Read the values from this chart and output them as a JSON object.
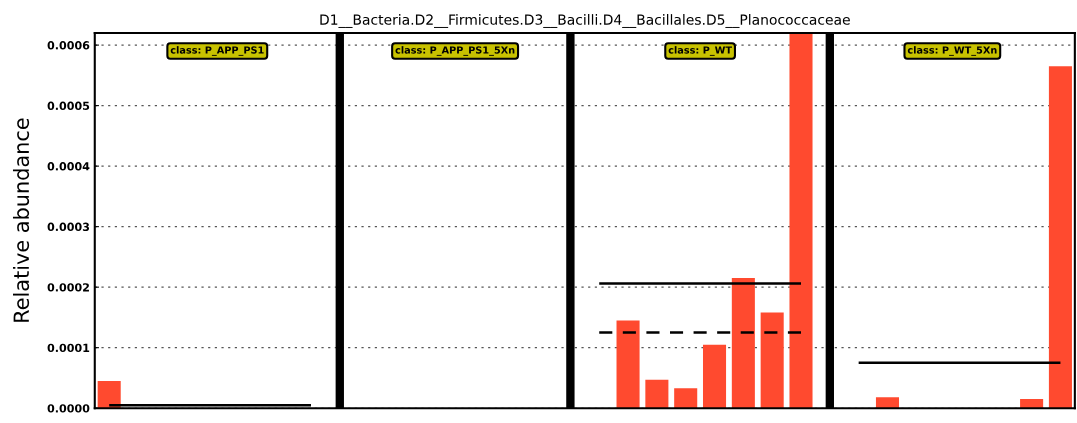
{
  "chart_data": {
    "type": "bar",
    "title": "D1__Bacteria.D2__Firmicutes.D3__Bacilli.D4__Bacillales.D5__Planococcaceae",
    "ylabel": "Relative abundance",
    "categories": [
      null,
      null,
      null,
      null,
      null,
      null,
      null,
      null,
      null,
      null,
      null,
      null,
      null,
      null,
      null,
      null,
      null,
      null,
      null,
      null,
      null,
      null,
      null,
      null,
      null,
      null,
      null,
      null,
      null,
      null,
      null,
      null,
      null,
      null
    ],
    "series": [
      {
        "color": "#ff4a2f",
        "values": [
          4.5e-05,
          0,
          0,
          0,
          0,
          0,
          0,
          0,
          null,
          0,
          0,
          0,
          0,
          0,
          0,
          0,
          null,
          0,
          0.000145,
          4.7e-05,
          3.3e-05,
          0.000105,
          0.000215,
          0.000158,
          0.00062,
          null,
          0,
          1.8e-05,
          0,
          0,
          0,
          0,
          1.5e-05,
          0.000565
        ]
      },
      {
        "type": "line",
        "color": "#000000",
        "line_style": "solid",
        "values": [
          5e-06,
          5e-06,
          5e-06,
          5e-06,
          5e-06,
          5e-06,
          5e-06,
          5e-06,
          null,
          null,
          null,
          null,
          null,
          null,
          null,
          null,
          null,
          null,
          null,
          null,
          null,
          null,
          null,
          null,
          null,
          null,
          null,
          null,
          null,
          null,
          null,
          null,
          null,
          null
        ]
      },
      {
        "type": "line",
        "color": "#000000",
        "line_style": "solid",
        "values": [
          null,
          null,
          null,
          null,
          null,
          null,
          null,
          null,
          null,
          null,
          null,
          null,
          null,
          null,
          null,
          null,
          null,
          0.000206,
          0.000206,
          0.000206,
          0.000206,
          0.000206,
          0.000206,
          0.000206,
          0.000206,
          null,
          null,
          null,
          null,
          null,
          null,
          null,
          null,
          null
        ]
      },
      {
        "type": "line",
        "color": "#000000",
        "line_style": "dashed",
        "values": [
          null,
          null,
          null,
          null,
          null,
          null,
          null,
          null,
          null,
          null,
          null,
          null,
          null,
          null,
          null,
          null,
          null,
          0.000125,
          0.000125,
          0.000125,
          0.000125,
          0.000125,
          0.000125,
          0.000125,
          0.000125,
          null,
          null,
          null,
          null,
          null,
          null,
          null,
          null,
          null
        ]
      },
      {
        "type": "line",
        "color": "#000000",
        "line_style": "solid",
        "values": [
          null,
          null,
          null,
          null,
          null,
          null,
          null,
          null,
          null,
          null,
          null,
          null,
          null,
          null,
          null,
          null,
          null,
          null,
          null,
          null,
          null,
          null,
          null,
          null,
          null,
          null,
          7.5e-05,
          7.5e-05,
          7.5e-05,
          7.5e-05,
          7.5e-05,
          7.5e-05,
          7.5e-05,
          7.5e-05
        ]
      }
    ],
    "ylim": [
      0,
      0.00062
    ],
    "yticks": [
      {
        "value": 0,
        "label": "0.0000"
      },
      {
        "value": 0.0001,
        "label": "0.0001"
      },
      {
        "value": 0.0002,
        "label": "0.0002"
      },
      {
        "value": 0.0003,
        "label": "0.0003"
      },
      {
        "value": 0.0004,
        "label": "0.0004"
      },
      {
        "value": 0.0005,
        "label": "0.0005"
      },
      {
        "value": 0.0006,
        "label": "0.0006"
      }
    ],
    "grid": "y",
    "tick_labels": "y",
    "annotations": [
      "class: P_APP_PS1",
      "class: P_APP_PS1_5Xn",
      "class: P_WT",
      "class: P_WT_5Xn"
    ]
  }
}
